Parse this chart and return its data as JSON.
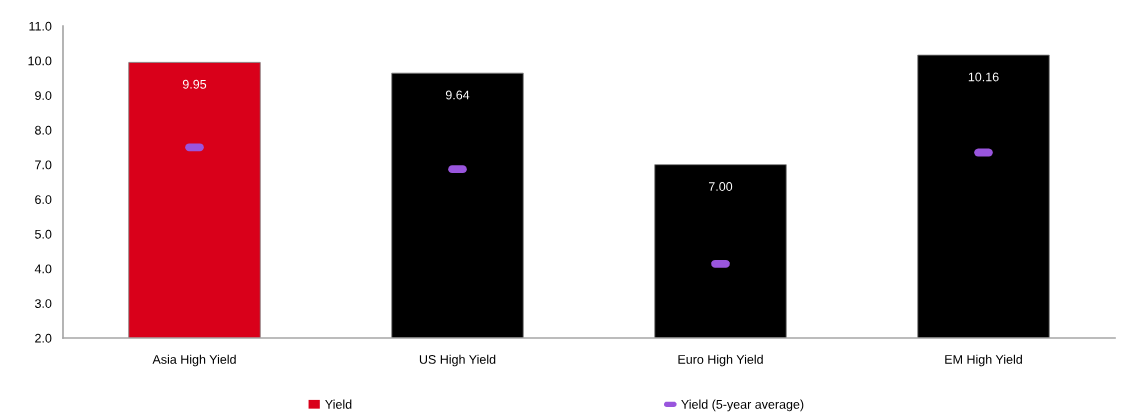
{
  "chart_data": {
    "type": "bar",
    "categories": [
      "Asia High Yield",
      "US High Yield",
      "Euro High Yield",
      "EM High Yield"
    ],
    "series": [
      {
        "name": "Yield",
        "color": "#d9001a",
        "colors": [
          "#d9001a",
          "#000000",
          "#000000",
          "#000000"
        ],
        "values": [
          9.95,
          9.64,
          7.0,
          10.16
        ],
        "value_labels": [
          "9.95",
          "9.64",
          "7.00",
          "10.16"
        ]
      },
      {
        "name": "Yield (5-year average)",
        "type": "scatter",
        "color": "#9955dd",
        "values": [
          7.5,
          6.87,
          4.14,
          7.35
        ]
      }
    ],
    "ylim": [
      2,
      11
    ],
    "yticks": [
      {
        "value": 2,
        "label": "2.0"
      },
      {
        "value": 3,
        "label": "3.0"
      },
      {
        "value": 4,
        "label": "4.0"
      },
      {
        "value": 5,
        "label": "5.0"
      },
      {
        "value": 6,
        "label": "6.0"
      },
      {
        "value": 7,
        "label": "7.0"
      },
      {
        "value": 8,
        "label": "8.0"
      },
      {
        "value": 9,
        "label": "9.0"
      },
      {
        "value": 10,
        "label": "10.0"
      },
      {
        "value": 11,
        "label": "11.0"
      }
    ],
    "grid": false,
    "legend": "bottom"
  }
}
